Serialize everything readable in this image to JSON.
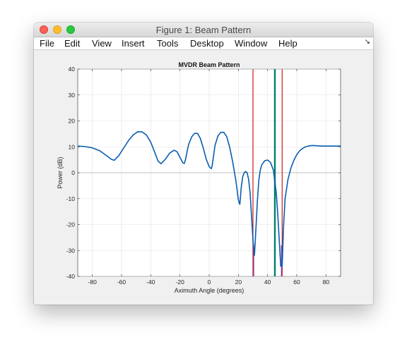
{
  "window": {
    "title": "Figure 1: Beam Pattern"
  },
  "menu": {
    "items": [
      "File",
      "Edit",
      "View",
      "Insert",
      "Tools",
      "Desktop",
      "Window",
      "Help"
    ],
    "overflow_icon": "arrow-icon"
  },
  "chart_data": {
    "type": "line",
    "title": "MVDR Beam Pattern",
    "xlabel": "Aximuth Angle (degrees)",
    "ylabel": "Power (dB)",
    "xlim": [
      -90,
      90
    ],
    "ylim": [
      -40,
      40
    ],
    "xticks": [
      -80,
      -60,
      -40,
      -20,
      0,
      20,
      40,
      60,
      80
    ],
    "yticks": [
      -40,
      -30,
      -20,
      -10,
      0,
      10,
      20,
      30,
      40
    ],
    "grid": true,
    "series": [
      {
        "color": "#0a5db0",
        "x": [
          -90,
          -85,
          -80,
          -75,
          -70,
          -67,
          -65,
          -62,
          -58,
          -55,
          -52,
          -49,
          -46,
          -43,
          -40,
          -37,
          -35,
          -33,
          -30,
          -27,
          -24,
          -22,
          -20,
          -18,
          -17,
          -16,
          -15,
          -14,
          -12,
          -10,
          -8,
          -6,
          -4,
          -2,
          0,
          1,
          1.5,
          2,
          3,
          4,
          6,
          8,
          10,
          12,
          14,
          16,
          18,
          19,
          20,
          21,
          22,
          23,
          24,
          25,
          26,
          27,
          28,
          29,
          30,
          31,
          32,
          33,
          34,
          35,
          36,
          38,
          40,
          42,
          44,
          46,
          47,
          48,
          49,
          50,
          51,
          52,
          54,
          56,
          58,
          60,
          62,
          64,
          66,
          68,
          70,
          72,
          74,
          78,
          80,
          84,
          90
        ],
        "y": [
          10.3,
          10.1,
          9.6,
          8.5,
          6.5,
          5.2,
          4.8,
          6.5,
          10.0,
          12.6,
          14.6,
          15.8,
          15.8,
          14.6,
          11.8,
          7.5,
          4.5,
          3.5,
          5.2,
          7.6,
          8.7,
          8.1,
          6.0,
          3.8,
          3.6,
          5.5,
          8.5,
          11.0,
          13.8,
          15.2,
          15.2,
          13.2,
          9.5,
          5.2,
          2.4,
          1.8,
          1.6,
          2.5,
          6.5,
          10.5,
          14.2,
          15.6,
          15.6,
          14.0,
          10.0,
          4.5,
          -2.0,
          -6.0,
          -10.5,
          -12.3,
          -5.5,
          -1.5,
          0.0,
          0.5,
          0.0,
          -2.5,
          -7.5,
          -16.5,
          -26,
          -32,
          -22,
          -11,
          -3,
          1.0,
          3.0,
          4.6,
          4.9,
          4.0,
          1.0,
          -8.0,
          -16.0,
          -26.0,
          -36.0,
          -36.0,
          -20.0,
          -10.0,
          -2.5,
          1.8,
          4.8,
          7.0,
          8.5,
          9.4,
          10.0,
          10.3,
          10.5,
          10.5,
          10.4,
          10.3,
          10.3,
          10.3,
          10.3
        ]
      }
    ],
    "vertical_lines": [
      {
        "x": 30,
        "color": "#d42a2a"
      },
      {
        "x": 45,
        "color": "#00806a"
      },
      {
        "x": 50,
        "color": "#d42a2a"
      }
    ],
    "notch_markers": [
      {
        "x": 30.5,
        "color": "#6b3fb0"
      },
      {
        "x": 49.5,
        "color": "#6b3fb0"
      }
    ],
    "zero_line": true
  }
}
